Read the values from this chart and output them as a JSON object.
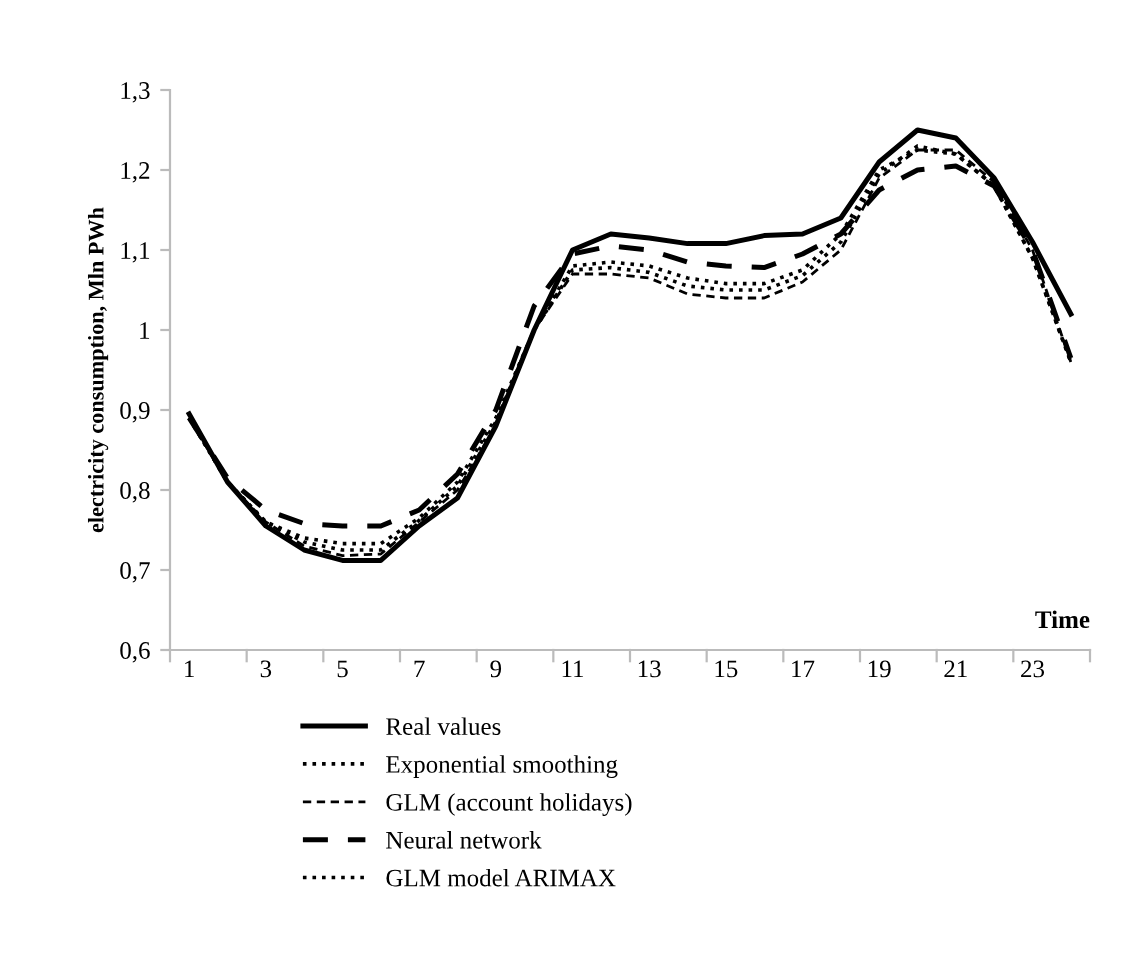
{
  "chart_data": {
    "type": "line",
    "xlabel": "Time",
    "ylabel": "electricity consumption, Mln PWh",
    "categories": [
      "1",
      null,
      "3",
      null,
      "5",
      null,
      "7",
      null,
      "9",
      null,
      "11",
      null,
      "13",
      null,
      "15",
      null,
      "17",
      null,
      "19",
      null,
      "21",
      null,
      "23",
      null
    ],
    "ylim": [
      0.6,
      1.3
    ],
    "yticks": [
      {
        "value": 0.6,
        "label": "0,6"
      },
      {
        "value": 0.7,
        "label": "0,7"
      },
      {
        "value": 0.8,
        "label": "0,8"
      },
      {
        "value": 0.9,
        "label": "0,9"
      },
      {
        "value": 1,
        "label": "1"
      },
      {
        "value": 1.1,
        "label": "1,1"
      },
      {
        "value": 1.2,
        "label": "1,2"
      },
      {
        "value": 1.3,
        "label": "1,3"
      }
    ],
    "grid": false,
    "legend": "bottom",
    "marker": "none",
    "series": [
      {
        "name": "Real values",
        "color": "#000000",
        "line_style": "solid",
        "values": [
          0.895,
          0.81,
          0.755,
          0.725,
          0.712,
          0.712,
          0.755,
          0.79,
          0.88,
          1.0,
          1.1,
          1.12,
          1.115,
          1.108,
          1.108,
          1.118,
          1.12,
          1.14,
          1.21,
          1.25,
          1.24,
          1.19,
          1.11,
          1.02
        ]
      },
      {
        "name": "Exponential smoothing",
        "color": "#000000",
        "line_style": "dotted",
        "values": [
          0.89,
          0.81,
          0.76,
          0.74,
          0.733,
          0.733,
          0.765,
          0.81,
          0.89,
          1.0,
          1.08,
          1.085,
          1.08,
          1.065,
          1.058,
          1.058,
          1.075,
          1.12,
          1.2,
          1.225,
          1.22,
          1.18,
          1.09,
          0.96
        ]
      },
      {
        "name": "GLM (account holidays)",
        "color": "#000000",
        "line_style": "dashed",
        "values": [
          0.89,
          0.81,
          0.76,
          0.73,
          0.718,
          0.72,
          0.76,
          0.8,
          0.88,
          1.0,
          1.07,
          1.07,
          1.065,
          1.045,
          1.04,
          1.04,
          1.06,
          1.1,
          1.19,
          1.225,
          1.225,
          1.185,
          1.1,
          0.96
        ]
      },
      {
        "name": "Neural network",
        "color": "#000000",
        "line_style": "longdash",
        "values": [
          0.89,
          0.815,
          0.775,
          0.758,
          0.755,
          0.755,
          0.775,
          0.82,
          0.9,
          1.03,
          1.095,
          1.105,
          1.1,
          1.085,
          1.08,
          1.078,
          1.095,
          1.12,
          1.175,
          1.2,
          1.205,
          1.18,
          1.1,
          0.965
        ]
      },
      {
        "name": "GLM model ARIMAX",
        "color": "#000000",
        "line_style": "dotted",
        "values": [
          0.89,
          0.81,
          0.76,
          0.735,
          0.725,
          0.725,
          0.762,
          0.805,
          0.885,
          1.0,
          1.075,
          1.078,
          1.072,
          1.055,
          1.05,
          1.05,
          1.068,
          1.11,
          1.195,
          1.23,
          1.22,
          1.18,
          1.09,
          0.96
        ]
      }
    ]
  }
}
